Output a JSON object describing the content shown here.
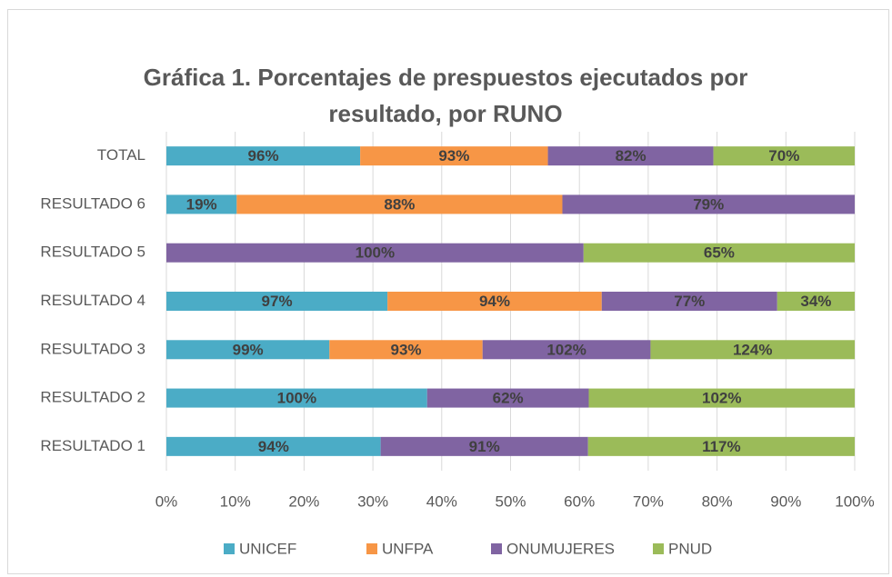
{
  "chart_data": {
    "type": "bar_stacked_100",
    "title_lines": [
      "Gráfica 1. Porcentajes de prespuestos ejecutados por",
      "resultado, por RUNO"
    ],
    "categories": [
      "RESULTADO 1",
      "RESULTADO 2",
      "RESULTADO 3",
      "RESULTADO 4",
      "RESULTADO 5",
      "RESULTADO 6",
      "TOTAL"
    ],
    "series": [
      {
        "name": "UNICEF",
        "color": "#4bacc6",
        "values": [
          94,
          100,
          99,
          97,
          null,
          19,
          96
        ],
        "value_labels": [
          "94%",
          "100%",
          "99%",
          "97%",
          null,
          "19%",
          "96%"
        ]
      },
      {
        "name": "UNFPA",
        "color": "#f79646",
        "values": [
          null,
          null,
          93,
          94,
          null,
          88,
          93
        ],
        "value_labels": [
          null,
          null,
          "93%",
          "94%",
          null,
          "88%",
          "93%"
        ]
      },
      {
        "name": "ONUMUJERES",
        "color": "#8064a2",
        "values": [
          91,
          62,
          102,
          77,
          100,
          79,
          82
        ],
        "value_labels": [
          "91%",
          "62%",
          "102%",
          "77%",
          "100%",
          "79%",
          "82%"
        ]
      },
      {
        "name": "PNUD",
        "color": "#9bbb59",
        "values": [
          117,
          102,
          124,
          34,
          65,
          null,
          70
        ],
        "value_labels": [
          "117%",
          "102%",
          "124%",
          "34%",
          "65%",
          null,
          "70%"
        ]
      }
    ],
    "xlim": [
      0,
      100
    ],
    "xticks": [
      {
        "value": 0,
        "label": "0%"
      },
      {
        "value": 10,
        "label": "10%"
      },
      {
        "value": 20,
        "label": "20%"
      },
      {
        "value": 30,
        "label": "30%"
      },
      {
        "value": 40,
        "label": "40%"
      },
      {
        "value": 50,
        "label": "50%"
      },
      {
        "value": 60,
        "label": "60%"
      },
      {
        "value": 70,
        "label": "70%"
      },
      {
        "value": 80,
        "label": "80%"
      },
      {
        "value": 90,
        "label": "90%"
      },
      {
        "value": 100,
        "label": "100%"
      }
    ],
    "grid": true,
    "legend": "bottom"
  }
}
